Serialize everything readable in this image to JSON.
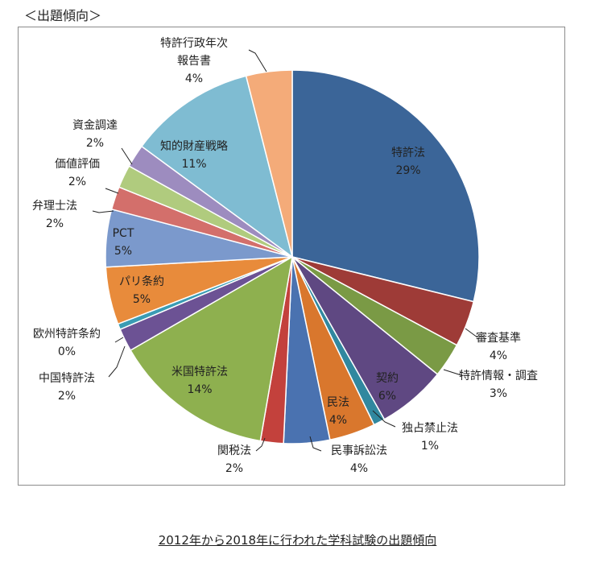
{
  "heading": "＜出題傾向＞",
  "caption": "2012年から2018年に行われた学科試験の出題傾向",
  "chart_data": {
    "type": "pie",
    "title": "",
    "start_angle": 0,
    "direction": "clockwise",
    "slices": [
      {
        "label": "特許法",
        "value": 29,
        "pct_text": "29%",
        "color": "#3b6598"
      },
      {
        "label": "審査基準",
        "value": 4,
        "pct_text": "4%",
        "color": "#9e3b37"
      },
      {
        "label": "特許情報・調査",
        "value": 3,
        "pct_text": "3%",
        "color": "#7a9a45"
      },
      {
        "label": "契約",
        "value": 6,
        "pct_text": "6%",
        "color": "#5f4882"
      },
      {
        "label": "独占禁止法",
        "value": 1,
        "pct_text": "1%",
        "color": "#31889f"
      },
      {
        "label": "民法",
        "value": 4,
        "pct_text": "4%",
        "color": "#d9772d"
      },
      {
        "label": "民事訴訟法",
        "value": 4,
        "pct_text": "4%",
        "color": "#4a72b0"
      },
      {
        "label": "関税法",
        "value": 2,
        "pct_text": "2%",
        "color": "#c3413c"
      },
      {
        "label": "米国特許法",
        "value": 14,
        "pct_text": "14%",
        "color": "#8eb04f"
      },
      {
        "label": "中国特許法",
        "value": 2,
        "pct_text": "2%",
        "color": "#6c5294"
      },
      {
        "label": "欧州特許条約",
        "value": 0,
        "pct_text": "0%",
        "color": "#3a9cb4"
      },
      {
        "label": "パリ条約",
        "value": 5,
        "pct_text": "5%",
        "color": "#e88b3b"
      },
      {
        "label": "PCT",
        "value": 5,
        "pct_text": "5%",
        "color": "#7b99cc"
      },
      {
        "label": "弁理士法",
        "value": 2,
        "pct_text": "2%",
        "color": "#d36f6b"
      },
      {
        "label": "価値評価",
        "value": 2,
        "pct_text": "2%",
        "color": "#b0cb7e"
      },
      {
        "label": "資金調達",
        "value": 2,
        "pct_text": "2%",
        "color": "#9d8cbf"
      },
      {
        "label": "知的財産戦略",
        "value": 11,
        "pct_text": "11%",
        "color": "#7fbcd2"
      },
      {
        "label": "特許行政年次報告書",
        "value": 4,
        "pct_text": "4%",
        "color": "#f4ab79"
      }
    ]
  }
}
